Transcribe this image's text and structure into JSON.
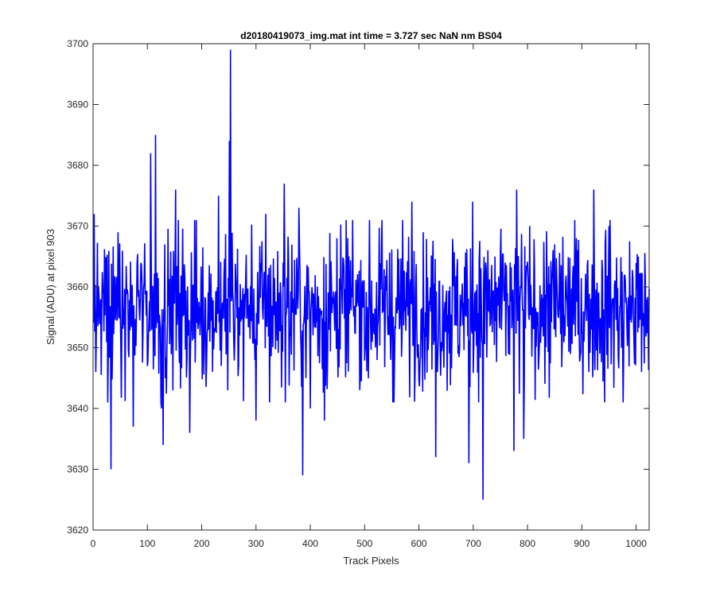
{
  "chart_data": {
    "type": "line",
    "title": "d20180419073_img.mat int time = 3.727 sec  NaN nm BS04",
    "xlabel": "Track Pixels",
    "ylabel": "Signal (ADU) at pixel 903",
    "xlim": [
      0,
      1024
    ],
    "ylim": [
      3620,
      3700
    ],
    "xticks": [
      0,
      100,
      200,
      300,
      400,
      500,
      600,
      700,
      800,
      900,
      1000
    ],
    "yticks": [
      3620,
      3630,
      3640,
      3650,
      3660,
      3670,
      3680,
      3690,
      3700
    ],
    "grid": false,
    "legend": "none",
    "series": [
      {
        "color": "#0000ff",
        "sampling": "one reading per track pixel, x = 1..1024",
        "mean": 3656.5,
        "std_dev": 6.5,
        "spikes": [
          {
            "x": 2,
            "y": 3672
          },
          {
            "x": 5,
            "y": 3646
          },
          {
            "x": 33,
            "y": 3630
          },
          {
            "x": 46,
            "y": 3669
          },
          {
            "x": 74,
            "y": 3637
          },
          {
            "x": 106,
            "y": 3682
          },
          {
            "x": 115,
            "y": 3685
          },
          {
            "x": 126,
            "y": 3640
          },
          {
            "x": 129,
            "y": 3634
          },
          {
            "x": 152,
            "y": 3676
          },
          {
            "x": 178,
            "y": 3636
          },
          {
            "x": 231,
            "y": 3675
          },
          {
            "x": 248,
            "y": 3643
          },
          {
            "x": 251,
            "y": 3684
          },
          {
            "x": 253,
            "y": 3699
          },
          {
            "x": 259,
            "y": 3651
          },
          {
            "x": 268,
            "y": 3647
          },
          {
            "x": 300,
            "y": 3638
          },
          {
            "x": 318,
            "y": 3672
          },
          {
            "x": 352,
            "y": 3677
          },
          {
            "x": 379,
            "y": 3673
          },
          {
            "x": 386,
            "y": 3629
          },
          {
            "x": 400,
            "y": 3640
          },
          {
            "x": 426,
            "y": 3638
          },
          {
            "x": 449,
            "y": 3668
          },
          {
            "x": 554,
            "y": 3641
          },
          {
            "x": 587,
            "y": 3674
          },
          {
            "x": 631,
            "y": 3632
          },
          {
            "x": 692,
            "y": 3631
          },
          {
            "x": 699,
            "y": 3674
          },
          {
            "x": 718,
            "y": 3625
          },
          {
            "x": 775,
            "y": 3633
          },
          {
            "x": 780,
            "y": 3676
          },
          {
            "x": 793,
            "y": 3635
          },
          {
            "x": 890,
            "y": 3668
          },
          {
            "x": 912,
            "y": 3652
          },
          {
            "x": 922,
            "y": 3676
          },
          {
            "x": 950,
            "y": 3670
          },
          {
            "x": 976,
            "y": 3641
          },
          {
            "x": 1010,
            "y": 3646
          }
        ]
      }
    ]
  }
}
